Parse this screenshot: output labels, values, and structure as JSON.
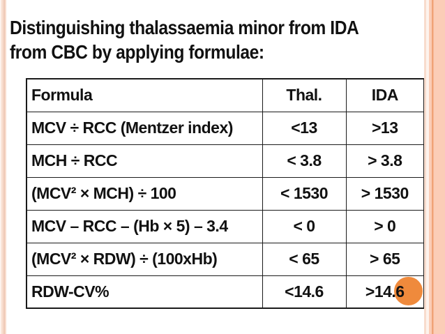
{
  "slide": {
    "title_line1": "Distinguishing thalassaemia minor from IDA",
    "title_line2": "from CBC by applying formulae:"
  },
  "table": {
    "headers": [
      "Formula",
      "Thal.",
      "IDA"
    ],
    "rows": [
      {
        "formula": "MCV ÷ RCC (Mentzer index)",
        "thal": "<13",
        "ida": ">13"
      },
      {
        "formula": "MCH ÷ RCC",
        "thal": "< 3.8",
        "ida": "> 3.8"
      },
      {
        "formula": "(MCV² × MCH) ÷ 100",
        "thal": "< 1530",
        "ida": "> 1530"
      },
      {
        "formula": "MCV – RCC – (Hb × 5) – 3.4",
        "thal": "< 0",
        "ida": "> 0"
      },
      {
        "formula": "(MCV² × RDW) ÷ (100xHb)",
        "thal": "< 65",
        "ida": "> 65"
      },
      {
        "formula": "RDW-CV%",
        "thal": "<14.6",
        "ida": ">14.6"
      }
    ]
  },
  "decorations": {
    "orange_circle_color": "#EF8A3C",
    "stripe_peach_light": "#F8DCCD",
    "stripe_peach_pale": "#FDF3ED",
    "stripe_peach_medium": "#FBCDB7",
    "stripe_peach_dark": "#F0A377",
    "table_border_color": "#1A1A1A",
    "text_color": "#111111"
  }
}
